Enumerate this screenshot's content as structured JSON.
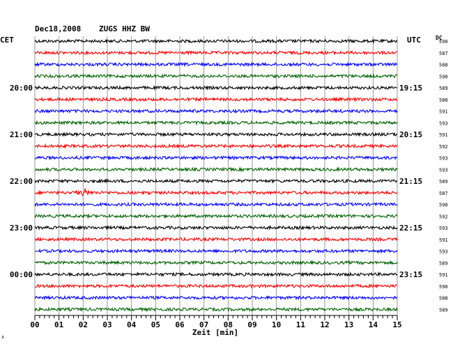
{
  "header": {
    "date": "Dec18,2008",
    "station": "ZUGS HHZ BW",
    "left_tz": "CET",
    "right_tz": "UTC",
    "dc_label": "DC",
    "xlabel": "Zeit [min]",
    "corner_mark": "x"
  },
  "colors": {
    "trace_cycle": [
      "#000000",
      "#ff0000",
      "#0000ff",
      "#006400"
    ],
    "grid": "#808080",
    "frame": "#000000"
  },
  "chart_data": {
    "type": "line",
    "subtype": "helicorder",
    "x_ticks": [
      "00",
      "01",
      "02",
      "03",
      "04",
      "05",
      "06",
      "07",
      "08",
      "09",
      "10",
      "11",
      "12",
      "13",
      "14",
      "15"
    ],
    "xlim": [
      0,
      15
    ],
    "minutes_per_line": 15,
    "grid_vertical": true,
    "left_hour_labels": [
      {
        "line": 4,
        "text": "20:00"
      },
      {
        "line": 8,
        "text": "21:00"
      },
      {
        "line": 12,
        "text": "22:00"
      },
      {
        "line": 16,
        "text": "23:00"
      },
      {
        "line": 20,
        "text": "00:00"
      }
    ],
    "right_hour_labels": [
      {
        "line": 4,
        "text": "19:15"
      },
      {
        "line": 8,
        "text": "20:15"
      },
      {
        "line": 12,
        "text": "21:15"
      },
      {
        "line": 16,
        "text": "22:15"
      },
      {
        "line": 20,
        "text": "23:15"
      }
    ],
    "dc_values": [
      "590",
      "587",
      "588",
      "590",
      "589",
      "588",
      "591",
      "593",
      "591",
      "592",
      "593",
      "593",
      "589",
      "587",
      "590",
      "592",
      "593",
      "591",
      "593",
      "589",
      "591",
      "590",
      "588",
      "589"
    ],
    "events": [
      {
        "line": 13,
        "minute": 2.0,
        "amplitude": "large"
      },
      {
        "line": 13,
        "minute": 4.9,
        "amplitude": "small"
      }
    ]
  }
}
